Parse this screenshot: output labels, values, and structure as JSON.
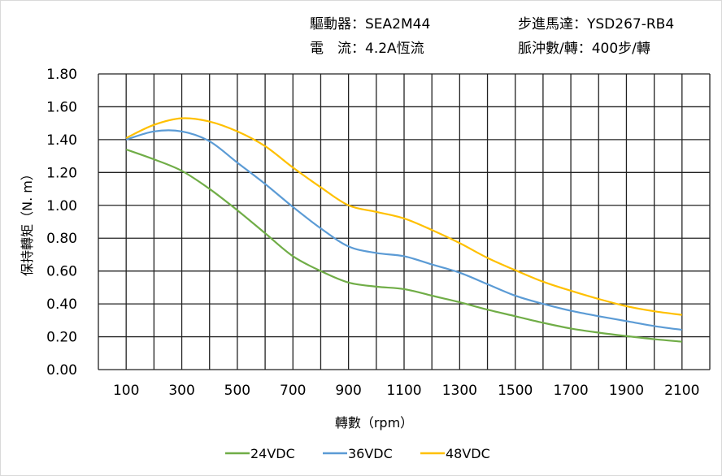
{
  "header": {
    "driver": "驅動器：SEA2M44",
    "motor": "步進馬達：YSD267-RB4",
    "current": "電　流：4.2A恆流",
    "pulses": "脈沖數/轉：400步/轉"
  },
  "chart_data": {
    "type": "line",
    "title": "",
    "xlabel": "轉數（rpm）",
    "ylabel": "保持轉矩（N. m）",
    "xlim": [
      0,
      2200
    ],
    "ylim": [
      0,
      1.8
    ],
    "grid": true,
    "legend": "bottom",
    "x_tick_labels": [
      "100",
      "300",
      "500",
      "700",
      "900",
      "1100",
      "1300",
      "1500",
      "1700",
      "1900",
      "2100"
    ],
    "y_tick_labels": [
      "0.00",
      "0.20",
      "0.40",
      "0.60",
      "0.80",
      "1.00",
      "1.20",
      "1.40",
      "1.60",
      "1.80"
    ],
    "x": [
      100,
      200,
      300,
      400,
      500,
      600,
      700,
      800,
      900,
      1000,
      1100,
      1200,
      1300,
      1400,
      1500,
      1600,
      1700,
      1800,
      1900,
      2000,
      2100
    ],
    "series": [
      {
        "name": "24VDC",
        "color": "#70ad47",
        "values": [
          1.34,
          1.28,
          1.21,
          1.1,
          0.97,
          0.83,
          0.69,
          0.6,
          0.53,
          0.505,
          0.49,
          0.45,
          0.41,
          0.365,
          0.325,
          0.285,
          0.25,
          0.225,
          0.204,
          0.185,
          0.17
        ]
      },
      {
        "name": "36VDC",
        "color": "#5b9bd5",
        "values": [
          1.4,
          1.45,
          1.45,
          1.39,
          1.26,
          1.13,
          0.99,
          0.86,
          0.75,
          0.71,
          0.69,
          0.64,
          0.59,
          0.52,
          0.45,
          0.4,
          0.358,
          0.325,
          0.295,
          0.265,
          0.242
        ]
      },
      {
        "name": "48VDC",
        "color": "#ffc000",
        "values": [
          1.41,
          1.49,
          1.53,
          1.51,
          1.45,
          1.36,
          1.23,
          1.11,
          1.0,
          0.96,
          0.92,
          0.85,
          0.77,
          0.68,
          0.605,
          0.535,
          0.48,
          0.43,
          0.386,
          0.355,
          0.333
        ]
      }
    ]
  }
}
